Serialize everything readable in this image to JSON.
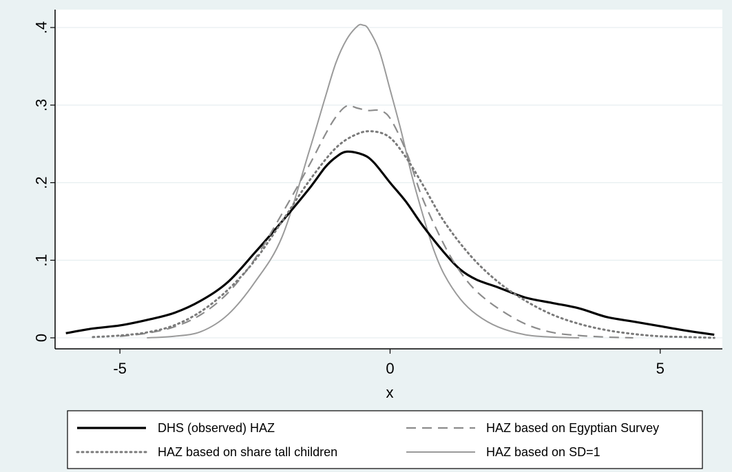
{
  "chart_data": {
    "type": "line",
    "title": "",
    "xlabel": "x",
    "ylabel": "",
    "xlim": [
      -6,
      6
    ],
    "ylim": [
      0,
      0.42
    ],
    "x_ticks": [
      -5,
      0,
      5
    ],
    "x_tick_labels": [
      "-5",
      "0",
      "5"
    ],
    "y_ticks": [
      0,
      0.1,
      0.2,
      0.3,
      0.4
    ],
    "y_tick_labels": [
      "0",
      ".1",
      ".2",
      ".3",
      ".4"
    ],
    "grid": true,
    "legend_placement": "bottom",
    "series": [
      {
        "name": "DHS (observed) HAZ",
        "color": "#000000",
        "style": "solid-thick",
        "x": [
          -6.0,
          -5.5,
          -5.0,
          -4.5,
          -4.0,
          -3.5,
          -3.0,
          -2.5,
          -2.0,
          -1.5,
          -1.2,
          -1.0,
          -0.8,
          -0.5,
          -0.3,
          0.0,
          0.3,
          0.6,
          1.0,
          1.3,
          1.6,
          2.0,
          2.5,
          3.0,
          3.5,
          4.0,
          4.5,
          5.0,
          5.5,
          6.0
        ],
        "y": [
          0.006,
          0.012,
          0.016,
          0.023,
          0.032,
          0.048,
          0.072,
          0.11,
          0.15,
          0.192,
          0.22,
          0.233,
          0.24,
          0.236,
          0.226,
          0.2,
          0.175,
          0.145,
          0.11,
          0.088,
          0.075,
          0.065,
          0.052,
          0.045,
          0.038,
          0.027,
          0.021,
          0.015,
          0.009,
          0.004
        ]
      },
      {
        "name": "HAZ based on Egyptian Survey",
        "color": "#8c8c8c",
        "style": "dashed",
        "x": [
          -5.0,
          -4.5,
          -4.0,
          -3.5,
          -3.0,
          -2.5,
          -2.0,
          -1.5,
          -1.2,
          -1.0,
          -0.8,
          -0.6,
          -0.4,
          -0.2,
          0.0,
          0.3,
          0.6,
          1.0,
          1.3,
          1.6,
          2.0,
          2.5,
          3.0,
          3.5,
          4.0,
          4.5
        ],
        "y": [
          0.002,
          0.006,
          0.014,
          0.03,
          0.058,
          0.102,
          0.16,
          0.222,
          0.262,
          0.285,
          0.299,
          0.296,
          0.293,
          0.293,
          0.283,
          0.24,
          0.18,
          0.12,
          0.085,
          0.06,
          0.038,
          0.018,
          0.007,
          0.003,
          0.001,
          0.0
        ]
      },
      {
        "name": "HAZ based on share tall children",
        "color": "#7a7a7a",
        "style": "dotted",
        "x": [
          -5.5,
          -5.0,
          -4.5,
          -4.0,
          -3.5,
          -3.0,
          -2.5,
          -2.0,
          -1.5,
          -1.0,
          -0.6,
          -0.3,
          0.0,
          0.3,
          0.6,
          1.0,
          1.5,
          2.0,
          2.5,
          3.0,
          3.5,
          4.0,
          4.5,
          5.0,
          5.5,
          6.0
        ],
        "y": [
          0.001,
          0.003,
          0.007,
          0.016,
          0.034,
          0.062,
          0.1,
          0.15,
          0.202,
          0.245,
          0.263,
          0.266,
          0.258,
          0.232,
          0.198,
          0.15,
          0.105,
          0.072,
          0.048,
          0.03,
          0.018,
          0.01,
          0.005,
          0.002,
          0.001,
          0.0
        ]
      },
      {
        "name": "HAZ based on SD=1",
        "color": "#9a9a9a",
        "style": "solid-thin",
        "x": [
          -4.5,
          -4.0,
          -3.5,
          -3.0,
          -2.5,
          -2.0,
          -1.5,
          -1.2,
          -1.0,
          -0.8,
          -0.6,
          -0.5,
          -0.4,
          -0.2,
          0.0,
          0.2,
          0.4,
          0.6,
          0.8,
          1.0,
          1.3,
          1.6,
          2.0,
          2.5,
          3.0,
          3.5
        ],
        "y": [
          0.0,
          0.002,
          0.008,
          0.03,
          0.072,
          0.13,
          0.24,
          0.31,
          0.355,
          0.385,
          0.402,
          0.403,
          0.398,
          0.37,
          0.32,
          0.268,
          0.21,
          0.16,
          0.115,
          0.082,
          0.05,
          0.03,
          0.014,
          0.004,
          0.001,
          0.0
        ]
      }
    ]
  }
}
